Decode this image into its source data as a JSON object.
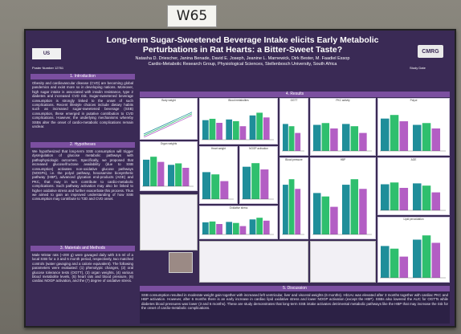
{
  "tag_label": "W65",
  "poster": {
    "title": "Long-term Sugar-Sweetened Beverage Intake elicits Early Metabolic Perturbations in Rat Hearts: a Bitter-Sweet Taste?",
    "authors_line": "Natasha D. Driescher, Janina Benade, David E. Joseph, Jeanine L. Marnewick, Dirk Bester, M. Faadiel Essop",
    "affiliation_line": "Cardio-Metabolic Research Group, Physiological Sciences, Stellenbosch University, South Africa",
    "logo_left": "US",
    "logo_right": "CMRG",
    "poster_number": "Poster Number 12761",
    "study_date": "Study Date"
  },
  "sections": {
    "introduction": {
      "heading": "1. Introduction",
      "body": "Obesity and cardiovascular disease (CVD) are becoming global pandemics and exist more so in developing nations. Moreover, high sugar intake is associated with insulin resistance, type 2 diabetes and increased CVD risk. Sugar-sweetened beverage consumption is strongly linked to the onset of such complications. Recent lifestyle choices include dietary habits such as increased sugar-sweetened beverage (SSB) consumption, these emerged in putative contribution to CVD complications. However, the underlying mechanisms whereby SSBs alter the onset of cardio-metabolic complications remain unclear."
    },
    "hypothesis": {
      "heading": "2. Hypotheses",
      "body": "We hypothesized that long-term SSB consumption will trigger dysregulation of glucose metabolic pathways with pathophysiologic outcomes. Specifically, we proposed that increased glucose/fructose availability (due to SSB consumption) activates non-oxidative glucose pathways (NOGPs), i.e. the polyol pathway, hexosamine biosynthetic pathway (HBP), advanced glycation end-products (AGE) and PKC, that may in turn contribute to cardio-metabolic complications. Such pathway activation may also be linked to higher oxidative stress and further exacerbate this process. Thus we aimed to gain an improved understanding of how SSB consumption may contribute to T2D and CVD onset."
    },
    "methods": {
      "heading": "3. Materials and Methods",
      "body": "Male Wistar rats (~200 g) were gavaged daily with 3.5 ml of a local SSB for a 3 and 6 month period, respectively, two matched controls (water gavaging and a calorie equivalent). The following parameters were evaluated: (1) phenotypic changes, (2) oral glucose tolerance tests (OGTT), (3) organ weights, (4) various blood metabolite levels, (5) heart rats and blood pressure, (6) cardiac NOGP activation, and the (7) degree of oxidative stress."
    },
    "results": {
      "heading": "4. Results"
    },
    "discussion": {
      "heading": "5. Discussion",
      "body": "SSB consumption resulted in moderate weight gain together with increased left ventricular, liver and visceral weights (6 months). Hb1Ac was elevated after 3 months together with cardiac PKC and HBP activation. However, after 6 months there is an early increase in cardiac lipid oxidative stress and lower NOGP activation (except the HBP). SSBs also lowered the AUC for OGTTs while diabetes blood pressures was lower (3 and 6 months). These are study demonstrates that long-term SSB intake activates detrimental metabolic pathways like the HBP that may increase the risk for the onset of cardio-metabolic complications."
    }
  },
  "figures": [
    {
      "title": "Body weight",
      "type": "line"
    },
    {
      "title": "Organ weights",
      "type": "bar"
    },
    {
      "title": "Blood metabolites",
      "type": "bar"
    },
    {
      "title": "Heart weight",
      "type": "bar"
    },
    {
      "title": "NOGP activation",
      "type": "bar"
    },
    {
      "title": "Oxidative stress",
      "type": "bar"
    },
    {
      "title": "OGTT",
      "type": "bar"
    },
    {
      "title": "Blood pressure",
      "type": "bar"
    },
    {
      "title": "PKC activity",
      "type": "bar"
    },
    {
      "title": "HBP",
      "type": "bar"
    },
    {
      "title": "Polyol",
      "type": "bar"
    },
    {
      "title": "AGE",
      "type": "bar"
    },
    {
      "title": "Lipid peroxidation",
      "type": "bar"
    }
  ],
  "chart_data": {
    "type": "bar",
    "series": [
      {
        "values": [
          60,
          72,
          58
        ]
      },
      {
        "values": [
          55,
          80,
          62
        ]
      },
      {
        "values": [
          40,
          66,
          50
        ]
      }
    ]
  },
  "colors": {
    "board": "#3a2a55",
    "section_header": "#7b4fa0",
    "bar_teal": "#1f8e9a",
    "bar_green": "#2fbf6e",
    "bar_purple": "#b35ec4"
  }
}
